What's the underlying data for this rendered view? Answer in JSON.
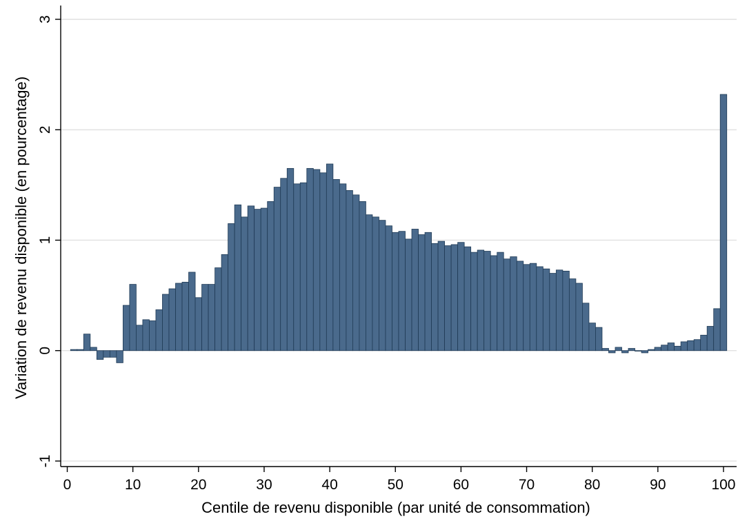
{
  "chart_data": {
    "type": "bar",
    "title": "",
    "xlabel": "Centile de revenu disponible (par unité de consommation)",
    "ylabel": "Variation de revenu disponible (en pourcentage)",
    "xlim": [
      -1,
      102
    ],
    "ylim": [
      -1.05,
      3.1
    ],
    "xticks": [
      "0",
      "10",
      "20",
      "30",
      "40",
      "50",
      "60",
      "70",
      "80",
      "90",
      "100"
    ],
    "yticks": [
      "-1",
      "0",
      "1",
      "2",
      "3"
    ],
    "grid": "horizontal",
    "bar_color": "#4a6a8c",
    "bar_edge_color": "#1f3a55",
    "categories": [
      1,
      2,
      3,
      4,
      5,
      6,
      7,
      8,
      9,
      10,
      11,
      12,
      13,
      14,
      15,
      16,
      17,
      18,
      19,
      20,
      21,
      22,
      23,
      24,
      25,
      26,
      27,
      28,
      29,
      30,
      31,
      32,
      33,
      34,
      35,
      36,
      37,
      38,
      39,
      40,
      41,
      42,
      43,
      44,
      45,
      46,
      47,
      48,
      49,
      50,
      51,
      52,
      53,
      54,
      55,
      56,
      57,
      58,
      59,
      60,
      61,
      62,
      63,
      64,
      65,
      66,
      67,
      68,
      69,
      70,
      71,
      72,
      73,
      74,
      75,
      76,
      77,
      78,
      79,
      80,
      81,
      82,
      83,
      84,
      85,
      86,
      87,
      88,
      89,
      90,
      91,
      92,
      93,
      94,
      95,
      96,
      97,
      98,
      99,
      100
    ],
    "values": [
      0.01,
      0.01,
      0.15,
      0.03,
      -0.08,
      -0.06,
      -0.06,
      -0.11,
      0.41,
      0.6,
      0.23,
      0.28,
      0.27,
      0.37,
      0.51,
      0.56,
      0.61,
      0.62,
      0.71,
      0.48,
      0.6,
      0.6,
      0.75,
      0.87,
      1.15,
      1.32,
      1.21,
      1.31,
      1.28,
      1.29,
      1.35,
      1.48,
      1.56,
      1.65,
      1.51,
      1.52,
      1.65,
      1.64,
      1.61,
      1.69,
      1.55,
      1.51,
      1.45,
      1.41,
      1.35,
      1.23,
      1.21,
      1.18,
      1.13,
      1.07,
      1.08,
      1.01,
      1.1,
      1.05,
      1.07,
      0.97,
      0.99,
      0.95,
      0.96,
      0.98,
      0.94,
      0.89,
      0.91,
      0.9,
      0.86,
      0.89,
      0.83,
      0.85,
      0.81,
      0.78,
      0.79,
      0.76,
      0.74,
      0.7,
      0.73,
      0.72,
      0.65,
      0.61,
      0.43,
      0.25,
      0.21,
      0.02,
      -0.02,
      0.03,
      -0.02,
      0.02,
      0.0,
      -0.02,
      0.01,
      0.03,
      0.05,
      0.07,
      0.04,
      0.08,
      0.09,
      0.1,
      0.14,
      0.22,
      0.38,
      2.32
    ]
  }
}
